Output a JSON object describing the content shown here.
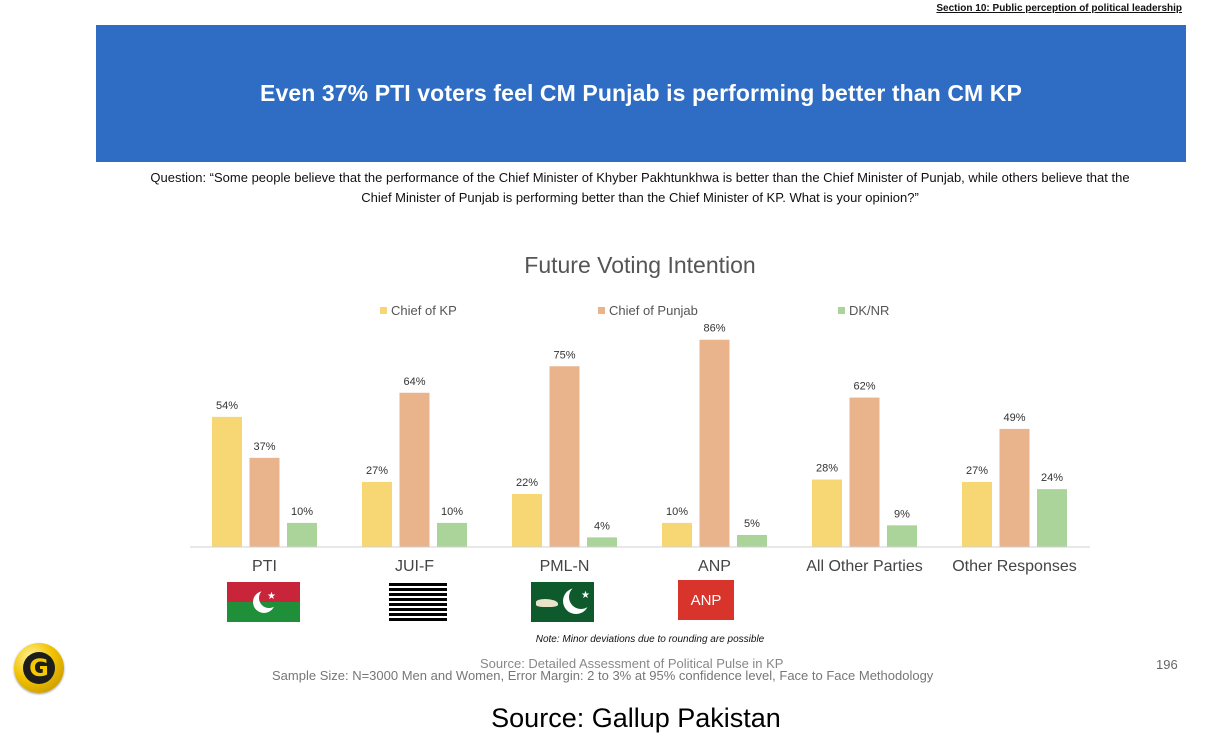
{
  "section_label": "Section 10: Public perception of political leadership",
  "banner_title": "Even 37% PTI voters feel CM Punjab is performing better than CM KP",
  "question_text": "Question: “Some people believe that the performance of the Chief Minister of Khyber Pakhtunkhwa is better than the Chief Minister of Punjab, while others believe that the Chief Minister of Punjab is performing better than the Chief Minister of KP. What is your opinion?”",
  "chart_data": {
    "type": "bar",
    "title": "Future Voting Intention",
    "categories": [
      "PTI",
      "JUI-F",
      "PML-N",
      "ANP",
      "All Other Parties",
      "Other Responses"
    ],
    "series": [
      {
        "name": "Chief of KP",
        "color": "#f7d774",
        "values": [
          54,
          27,
          22,
          10,
          28,
          27
        ]
      },
      {
        "name": "Chief of Punjab",
        "color": "#e9b48c",
        "values": [
          37,
          64,
          75,
          86,
          62,
          49
        ]
      },
      {
        "name": "DK/NR",
        "color": "#abd49a",
        "values": [
          10,
          10,
          4,
          5,
          9,
          24
        ]
      }
    ],
    "value_suffix": "%",
    "ylim": [
      0,
      100
    ],
    "legend_position": "top",
    "grid": false
  },
  "party_logos": {
    "anp_text": "ANP"
  },
  "note_text": "Note: Minor deviations due to rounding are possible",
  "source_small": "Source: Detailed Assessment of Political Pulse in KP",
  "sample_text": "Sample Size: N=3000 Men and Women, Error Margin: 2 to 3% at 95% confidence level, Face to Face Methodology",
  "page_number": "196",
  "logo_letter": "G",
  "footer_source": "Source: Gallup Pakistan"
}
